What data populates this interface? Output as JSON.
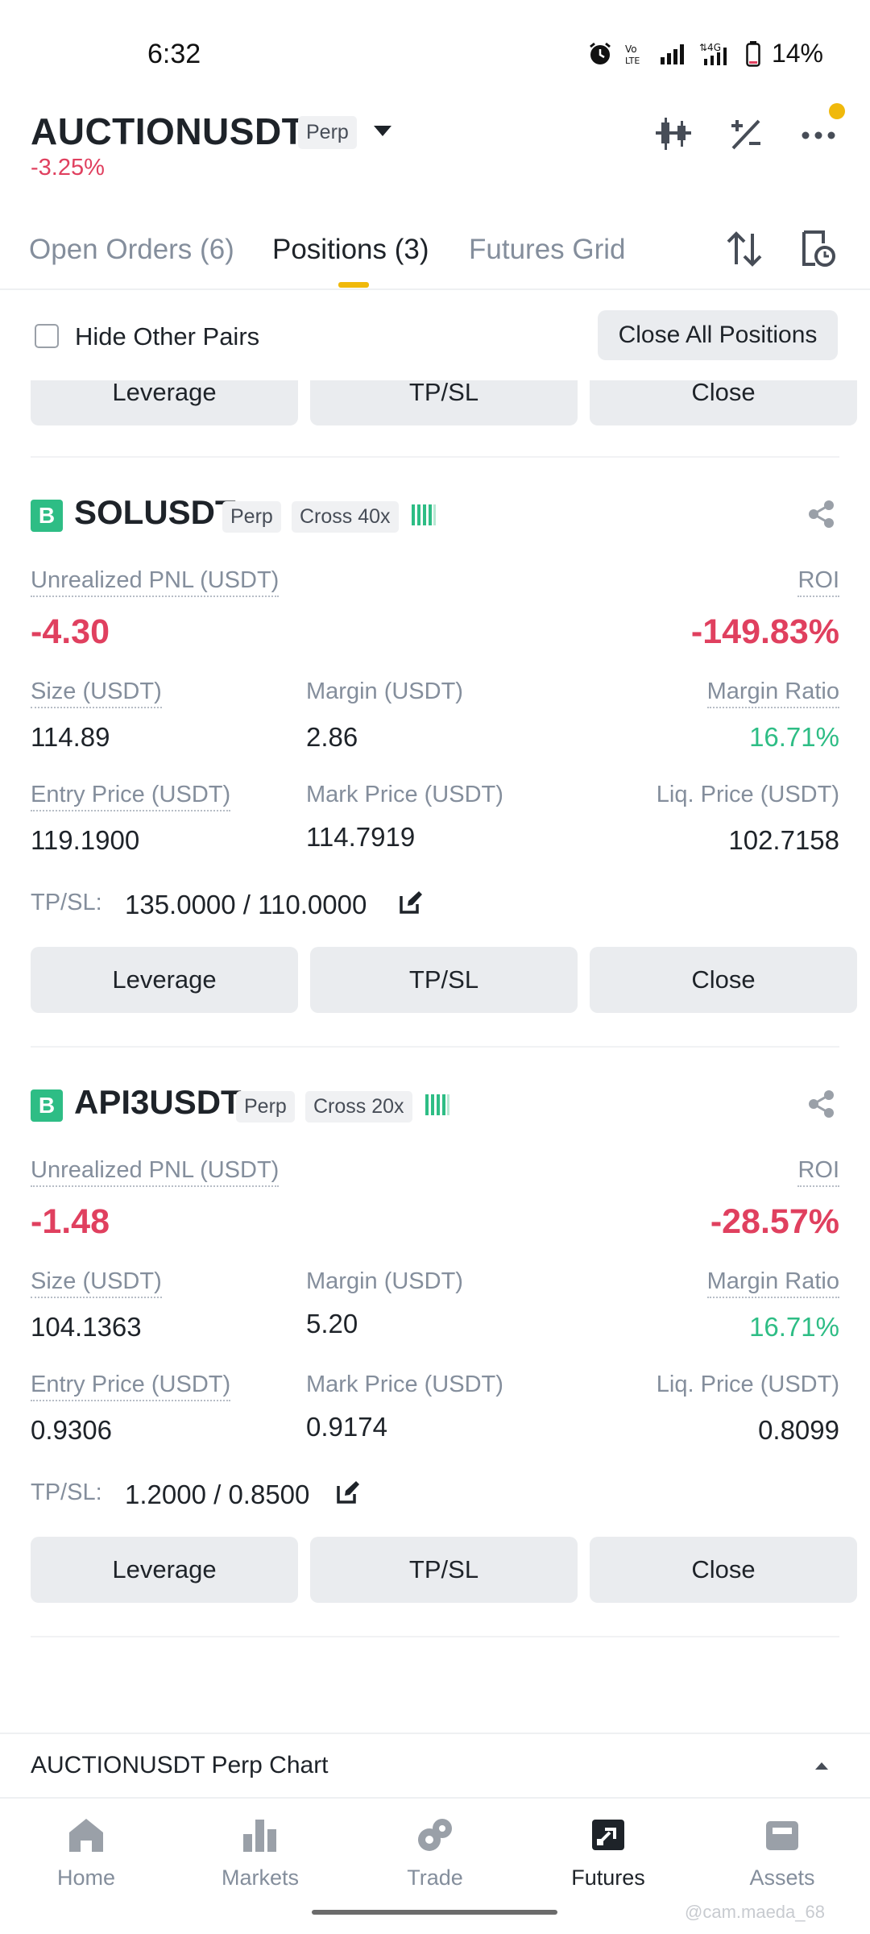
{
  "status_bar": {
    "time": "6:32",
    "battery": "14%",
    "icons": [
      "alarm-icon",
      "volte-icon",
      "signal-icon",
      "4g-signal-icon",
      "battery-icon"
    ]
  },
  "header": {
    "symbol": "AUCTIONUSDT",
    "contract_type": "Perp",
    "change": "-3.25%",
    "icons": [
      "candlestick-icon",
      "calculator-icon",
      "more-icon"
    ]
  },
  "tabs": [
    {
      "label": "Open Orders (6)",
      "active": false
    },
    {
      "label": "Positions (3)",
      "active": true
    },
    {
      "label": "Futures Grid",
      "active": false
    }
  ],
  "filter": {
    "hide_other_pairs_label": "Hide Other Pairs",
    "hide_other_pairs_checked": false,
    "close_all_label": "Close All Positions"
  },
  "actions": {
    "leverage": "Leverage",
    "tpsl": "TP/SL",
    "close": "Close"
  },
  "labels": {
    "unrealized_pnl": "Unrealized PNL (USDT)",
    "roi": "ROI",
    "size": "Size (USDT)",
    "margin": "Margin (USDT)",
    "margin_ratio": "Margin Ratio",
    "entry_price": "Entry Price (USDT)",
    "mark_price": "Mark Price (USDT)",
    "liq_price": "Liq. Price (USDT)",
    "tpsl": "TP/SL:"
  },
  "positions": [
    {
      "side_badge": "B",
      "pair": "SOLUSDT",
      "type": "Perp",
      "margin_mode": "Cross 40x",
      "unrealized_pnl": "-4.30",
      "roi": "-149.83%",
      "size": "114.89",
      "margin": "2.86",
      "margin_ratio": "16.71%",
      "entry_price": "119.1900",
      "mark_price": "114.7919",
      "liq_price": "102.7158",
      "tpsl": "135.0000 / 110.0000"
    },
    {
      "side_badge": "B",
      "pair": "API3USDT",
      "type": "Perp",
      "margin_mode": "Cross 20x",
      "unrealized_pnl": "-1.48",
      "roi": "-28.57%",
      "size": "104.1363",
      "margin": "5.20",
      "margin_ratio": "16.71%",
      "entry_price": "0.9306",
      "mark_price": "0.9174",
      "liq_price": "0.8099",
      "tpsl": "1.2000 / 0.8500"
    }
  ],
  "chart_bar": {
    "label": "AUCTIONUSDT Perp Chart"
  },
  "bottom_nav": [
    {
      "label": "Home",
      "icon": "home-icon",
      "active": false
    },
    {
      "label": "Markets",
      "icon": "markets-icon",
      "active": false
    },
    {
      "label": "Trade",
      "icon": "trade-icon",
      "active": false
    },
    {
      "label": "Futures",
      "icon": "futures-icon",
      "active": true
    },
    {
      "label": "Assets",
      "icon": "assets-icon",
      "active": false
    }
  ],
  "watermark": "@cam.maeda_68",
  "colors": {
    "accent": "#f0b90b",
    "loss": "#e0405f",
    "gain": "#2ebd85"
  }
}
